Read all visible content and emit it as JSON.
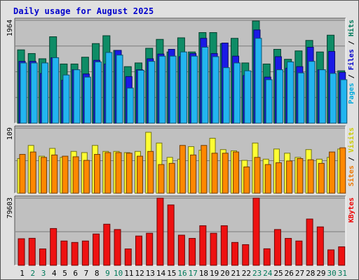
{
  "title": "Daily usage for August 2025",
  "chart_data": [
    {
      "type": "bar",
      "panel": "hits-files-pages",
      "ymax_label": "1964",
      "ylim": [
        0,
        1964
      ],
      "right_label": [
        "Pages",
        "Files",
        "Hits"
      ],
      "right_label_colors": [
        "#00aadd",
        "#0000cc",
        "#007a5a"
      ],
      "categories": [
        "1",
        "2",
        "3",
        "4",
        "5",
        "6",
        "7",
        "8",
        "9",
        "10",
        "11",
        "12",
        "13",
        "14",
        "15",
        "16",
        "17",
        "18",
        "19",
        "20",
        "21",
        "22",
        "23",
        "24",
        "25",
        "26",
        "27",
        "28",
        "29",
        "30",
        "31"
      ],
      "weekend_days": [
        "2",
        "3",
        "9",
        "10",
        "16",
        "17",
        "23",
        "24",
        "30",
        "31"
      ],
      "series": [
        {
          "name": "Hits",
          "color": "#0e8c66",
          "values": [
            1400,
            1330,
            1230,
            1650,
            1130,
            1130,
            1260,
            1520,
            1670,
            1390,
            1080,
            1150,
            1430,
            1600,
            1360,
            1630,
            1360,
            1730,
            1730,
            1520,
            1620,
            1150,
            1950,
            1130,
            1410,
            1220,
            1380,
            1580,
            1360,
            1680,
            1000
          ]
        },
        {
          "name": "Files",
          "color": "#1a1ae6",
          "values": [
            1180,
            1180,
            950,
            1250,
            820,
            1020,
            940,
            1200,
            1130,
            1390,
            890,
            1020,
            1230,
            1320,
            1410,
            1270,
            1330,
            1620,
            1330,
            1530,
            1280,
            910,
            1780,
            880,
            1270,
            1050,
            1080,
            1450,
            1020,
            1370,
            970
          ]
        },
        {
          "name": "Pages",
          "color": "#22b5f0",
          "values": [
            1150,
            1150,
            1150,
            1250,
            920,
            1020,
            880,
            1170,
            1350,
            1300,
            670,
            1010,
            1180,
            1280,
            1280,
            1360,
            1280,
            1450,
            1270,
            1060,
            1150,
            1000,
            1620,
            830,
            1020,
            1170,
            960,
            1180,
            1020,
            950,
            830
          ]
        }
      ]
    },
    {
      "type": "bar",
      "panel": "visits-sites",
      "ymax_label": "109",
      "ylim": [
        0,
        109
      ],
      "right_label": [
        "Sites",
        "Visits"
      ],
      "right_label_colors": [
        "#ee7700",
        "#cccc00"
      ],
      "categories": [
        "1",
        "2",
        "3",
        "4",
        "5",
        "6",
        "7",
        "8",
        "9",
        "10",
        "11",
        "12",
        "13",
        "14",
        "15",
        "16",
        "17",
        "18",
        "19",
        "20",
        "21",
        "22",
        "23",
        "24",
        "25",
        "26",
        "27",
        "28",
        "29",
        "30",
        "31"
      ],
      "series": [
        {
          "name": "Visits",
          "color": "#ffff33",
          "values": [
            58,
            80,
            62,
            75,
            60,
            70,
            68,
            80,
            70,
            70,
            68,
            70,
            102,
            84,
            60,
            57,
            78,
            72,
            92,
            73,
            71,
            55,
            84,
            57,
            74,
            67,
            60,
            73,
            57,
            60,
            74
          ]
        },
        {
          "name": "Sites",
          "color": "#ff8800",
          "values": [
            65,
            69,
            60,
            64,
            62,
            61,
            55,
            65,
            68,
            68,
            67,
            62,
            70,
            48,
            50,
            80,
            64,
            80,
            67,
            67,
            69,
            44,
            60,
            48,
            51,
            54,
            58,
            56,
            50,
            69,
            76
          ]
        }
      ]
    },
    {
      "type": "bar",
      "panel": "kbytes",
      "ymax_label": "79603",
      "ylim": [
        0,
        79603
      ],
      "right_label": [
        "KBytes"
      ],
      "right_label_colors": [
        "#ee0000"
      ],
      "categories": [
        "1",
        "2",
        "3",
        "4",
        "5",
        "6",
        "7",
        "8",
        "9",
        "10",
        "11",
        "12",
        "13",
        "14",
        "15",
        "16",
        "17",
        "18",
        "19",
        "20",
        "21",
        "22",
        "23",
        "24",
        "25",
        "26",
        "27",
        "28",
        "29",
        "30",
        "31"
      ],
      "series": [
        {
          "name": "KBytes",
          "color": "#ee1111",
          "values": [
            31500,
            32000,
            19400,
            43600,
            28800,
            27100,
            28800,
            37100,
            48700,
            42400,
            19400,
            34700,
            38000,
            79600,
            71500,
            35700,
            31900,
            46900,
            38000,
            46900,
            27100,
            24500,
            79600,
            19600,
            42400,
            31900,
            28800,
            54800,
            45500,
            18300,
            21900
          ]
        }
      ]
    }
  ]
}
